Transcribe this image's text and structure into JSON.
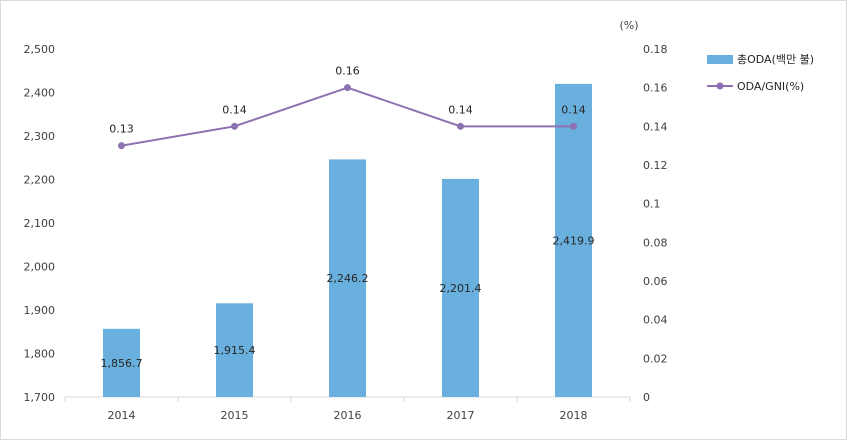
{
  "chart_data": {
    "type": "bar+line",
    "categories": [
      "2014",
      "2015",
      "2016",
      "2017",
      "2018"
    ],
    "series": [
      {
        "name": "총ODA(백만 불)",
        "type": "bar",
        "axis": "left",
        "values": [
          1856.7,
          1915.4,
          2246.2,
          2201.4,
          2419.9
        ],
        "labels": [
          "1,856.7",
          "1,915.4",
          "2,246.2",
          "2,201.4",
          "2,419.9"
        ],
        "color": "#6ab0de"
      },
      {
        "name": "ODA/GNI(%)",
        "type": "line",
        "axis": "right",
        "values": [
          0.13,
          0.14,
          0.16,
          0.14,
          0.14
        ],
        "labels": [
          "0.13",
          "0.14",
          "0.16",
          "0.14",
          "0.14"
        ],
        "color": "#8e71b0"
      }
    ],
    "y_left": {
      "range": [
        1700,
        2500
      ],
      "ticks": [
        "1,700",
        "1,800",
        "1,900",
        "2,000",
        "2,100",
        "2,200",
        "2,300",
        "2,400",
        "2,500"
      ],
      "tick_values": [
        1700,
        1800,
        1900,
        2000,
        2100,
        2200,
        2300,
        2400,
        2500
      ]
    },
    "y_right": {
      "unit_label": "(%)",
      "range": [
        0,
        0.18
      ],
      "ticks": [
        "0",
        "0.02",
        "0.04",
        "0.06",
        "0.08",
        "0.1",
        "0.12",
        "0.14",
        "0.16",
        "0.18"
      ],
      "tick_values": [
        0,
        0.02,
        0.04,
        0.06,
        0.08,
        0.1,
        0.12,
        0.14,
        0.16,
        0.18
      ]
    },
    "legend": {
      "position": "right",
      "items": [
        {
          "label": "총ODA(백만 불)",
          "kind": "bar"
        },
        {
          "label": "ODA/GNI(%)",
          "kind": "line"
        }
      ]
    }
  }
}
